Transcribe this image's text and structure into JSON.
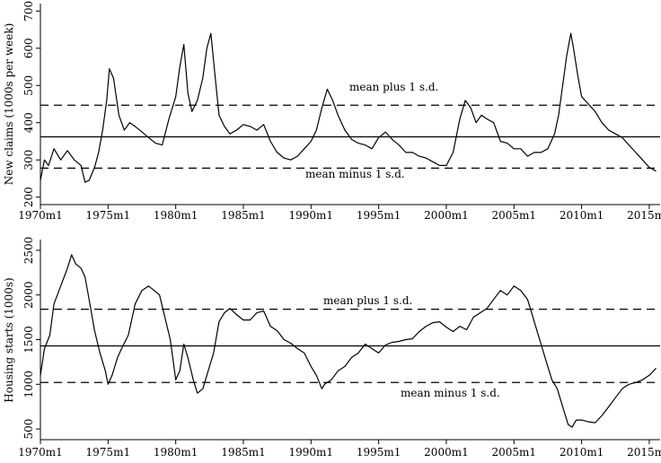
{
  "chart_data": [
    {
      "type": "line",
      "ylabel": "New claims (1000s per week)",
      "xlabel": "",
      "xlim": [
        1970.0,
        2015.8
      ],
      "ylim": [
        180,
        720
      ],
      "yticks": [
        200,
        300,
        400,
        500,
        600,
        700
      ],
      "xticks": [
        "1970m1",
        "1975m1",
        "1980m1",
        "1985m1",
        "1990m1",
        "1995m1",
        "2000m1",
        "2005m1",
        "2010m1",
        "2015m1"
      ],
      "mean": 362,
      "mean_plus_sd": 447,
      "mean_minus_sd": 278,
      "annotations": {
        "upper": "mean plus 1 s.d.",
        "lower": "mean minus 1 s.d."
      },
      "series": [
        {
          "x": [
            1970.0,
            1970.3,
            1970.6,
            1971.0,
            1971.5,
            1972.0,
            1972.5,
            1973.0,
            1973.3,
            1973.6,
            1974.0,
            1974.3,
            1974.6,
            1974.9,
            1975.1,
            1975.4,
            1975.8,
            1976.2,
            1976.6,
            1977.0,
            1977.5,
            1978.0,
            1978.5,
            1979.0,
            1979.5,
            1980.0,
            1980.3,
            1980.6,
            1980.9,
            1981.2,
            1981.6,
            1982.0,
            1982.3,
            1982.6,
            1982.9,
            1983.2,
            1983.6,
            1984.0,
            1984.5,
            1985.0,
            1985.5,
            1986.0,
            1986.5,
            1987.0,
            1987.5,
            1988.0,
            1988.5,
            1989.0,
            1989.5,
            1990.0,
            1990.4,
            1990.8,
            1991.2,
            1991.6,
            1992.0,
            1992.5,
            1993.0,
            1993.5,
            1994.0,
            1994.5,
            1995.0,
            1995.5,
            1996.0,
            1996.5,
            1997.0,
            1997.5,
            1998.0,
            1998.5,
            1999.0,
            1999.5,
            2000.0,
            2000.5,
            2001.0,
            2001.4,
            2001.8,
            2002.2,
            2002.6,
            2003.0,
            2003.5,
            2004.0,
            2004.5,
            2005.0,
            2005.5,
            2006.0,
            2006.5,
            2007.0,
            2007.5,
            2008.0,
            2008.3,
            2008.6,
            2008.9,
            2009.2,
            2009.4,
            2009.7,
            2010.0,
            2010.5,
            2011.0,
            2011.5,
            2012.0,
            2012.5,
            2013.0,
            2013.5,
            2014.0,
            2014.5,
            2015.0,
            2015.5
          ],
          "y": [
            245,
            300,
            285,
            330,
            300,
            325,
            300,
            285,
            240,
            245,
            280,
            320,
            380,
            460,
            545,
            520,
            420,
            380,
            400,
            390,
            375,
            360,
            345,
            340,
            410,
            470,
            550,
            610,
            480,
            430,
            460,
            520,
            600,
            640,
            530,
            420,
            390,
            370,
            380,
            395,
            390,
            380,
            395,
            350,
            320,
            305,
            300,
            310,
            330,
            350,
            380,
            440,
            490,
            460,
            420,
            380,
            355,
            345,
            340,
            330,
            360,
            375,
            355,
            340,
            320,
            320,
            310,
            305,
            295,
            285,
            285,
            320,
            410,
            460,
            440,
            400,
            420,
            410,
            400,
            350,
            345,
            330,
            330,
            310,
            320,
            320,
            330,
            370,
            420,
            500,
            580,
            640,
            600,
            530,
            470,
            450,
            430,
            400,
            380,
            370,
            360,
            340,
            320,
            300,
            280,
            270
          ]
        }
      ]
    },
    {
      "type": "line",
      "ylabel": "Housing starts (1000s)",
      "xlabel": "",
      "xlim": [
        1970.0,
        2015.8
      ],
      "ylim": [
        380,
        2620
      ],
      "yticks": [
        500,
        1000,
        1500,
        2000,
        2500
      ],
      "xticks": [
        "1970m1",
        "1975m1",
        "1980m1",
        "1985m1",
        "1990m1",
        "1995m1",
        "2000m1",
        "2005m1",
        "2010m1",
        "2015m1"
      ],
      "mean": 1430,
      "mean_plus_sd": 1840,
      "mean_minus_sd": 1020,
      "annotations": {
        "upper": "mean plus 1 s.d.",
        "lower": "mean minus 1 s.d."
      },
      "series": [
        {
          "x": [
            1970.0,
            1970.3,
            1970.7,
            1971.0,
            1971.5,
            1972.0,
            1972.3,
            1972.6,
            1973.0,
            1973.3,
            1973.6,
            1974.0,
            1974.4,
            1974.8,
            1975.0,
            1975.3,
            1975.7,
            1976.0,
            1976.5,
            1977.0,
            1977.5,
            1978.0,
            1978.4,
            1978.8,
            1979.2,
            1979.6,
            1980.0,
            1980.3,
            1980.6,
            1980.9,
            1981.3,
            1981.6,
            1982.0,
            1982.4,
            1982.8,
            1983.2,
            1983.6,
            1984.0,
            1984.5,
            1985.0,
            1985.5,
            1986.0,
            1986.5,
            1987.0,
            1987.5,
            1988.0,
            1988.5,
            1989.0,
            1989.5,
            1990.0,
            1990.4,
            1990.8,
            1991.0,
            1991.5,
            1992.0,
            1992.5,
            1993.0,
            1993.5,
            1994.0,
            1994.5,
            1995.0,
            1995.5,
            1996.0,
            1996.5,
            1997.0,
            1997.5,
            1998.0,
            1998.5,
            1999.0,
            1999.5,
            2000.0,
            2000.5,
            2001.0,
            2001.5,
            2002.0,
            2002.5,
            2003.0,
            2003.5,
            2004.0,
            2004.5,
            2005.0,
            2005.5,
            2006.0,
            2006.3,
            2006.6,
            2007.0,
            2007.4,
            2007.8,
            2008.2,
            2008.6,
            2009.0,
            2009.3,
            2009.6,
            2010.0,
            2010.5,
            2011.0,
            2011.5,
            2012.0,
            2012.5,
            2013.0,
            2013.5,
            2014.0,
            2014.5,
            2015.0,
            2015.5
          ],
          "y": [
            1100,
            1400,
            1550,
            1900,
            2100,
            2300,
            2450,
            2350,
            2300,
            2200,
            1950,
            1600,
            1350,
            1150,
            1000,
            1100,
            1300,
            1400,
            1550,
            1900,
            2050,
            2100,
            2050,
            2000,
            1750,
            1500,
            1050,
            1150,
            1450,
            1300,
            1050,
            900,
            950,
            1150,
            1350,
            1700,
            1800,
            1850,
            1780,
            1720,
            1720,
            1800,
            1820,
            1650,
            1600,
            1500,
            1460,
            1400,
            1350,
            1200,
            1100,
            950,
            1000,
            1050,
            1150,
            1200,
            1300,
            1350,
            1450,
            1400,
            1350,
            1440,
            1470,
            1480,
            1500,
            1510,
            1590,
            1650,
            1690,
            1700,
            1640,
            1590,
            1650,
            1610,
            1750,
            1800,
            1850,
            1950,
            2050,
            2000,
            2100,
            2050,
            1950,
            1800,
            1650,
            1450,
            1250,
            1050,
            950,
            750,
            550,
            520,
            600,
            600,
            580,
            570,
            650,
            750,
            850,
            950,
            1000,
            1020,
            1050,
            1100,
            1180
          ]
        }
      ]
    }
  ]
}
